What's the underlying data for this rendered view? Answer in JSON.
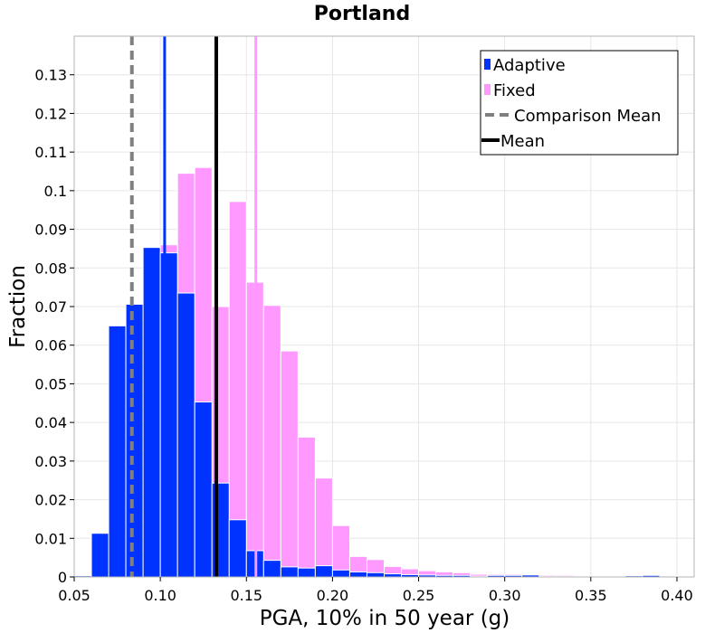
{
  "chart_data": {
    "type": "bar",
    "title": "Portland",
    "xlabel": "PGA, 10% in 50 year (g)",
    "ylabel": "Fraction",
    "xlim": [
      0.05,
      0.41
    ],
    "ylim": [
      0,
      0.14
    ],
    "x_ticks": [
      "0.05",
      "0.10",
      "0.15",
      "0.20",
      "0.25",
      "0.30",
      "0.35",
      "0.40"
    ],
    "x_tick_values": [
      0.05,
      0.1,
      0.15,
      0.2,
      0.25,
      0.3,
      0.35,
      0.4
    ],
    "y_ticks": [
      "0",
      "0.01",
      "0.02",
      "0.03",
      "0.04",
      "0.05",
      "0.06",
      "0.07",
      "0.08",
      "0.09",
      "0.1",
      "0.11",
      "0.12",
      "0.13"
    ],
    "y_tick_values": [
      0,
      0.01,
      0.02,
      0.03,
      0.04,
      0.05,
      0.06,
      0.07,
      0.08,
      0.09,
      0.1,
      0.11,
      0.12,
      0.13
    ],
    "grid": true,
    "legend_position": "top-right",
    "bin_width": 0.01,
    "bin_starts": [
      0.05,
      0.06,
      0.07,
      0.08,
      0.09,
      0.1,
      0.11,
      0.12,
      0.13,
      0.14,
      0.15,
      0.16,
      0.17,
      0.18,
      0.19,
      0.2,
      0.21,
      0.22,
      0.23,
      0.24,
      0.25,
      0.26,
      0.27,
      0.28,
      0.29,
      0.3,
      0.31,
      0.32,
      0.33,
      0.34,
      0.35,
      0.36,
      0.37,
      0.38,
      0.39
    ],
    "series": [
      {
        "name": "Fixed",
        "color": "#ff99ff",
        "values": [
          0,
          0,
          0,
          0,
          0,
          0.086,
          0.1045,
          0.106,
          0.07,
          0.0972,
          0.0763,
          0.0703,
          0.0585,
          0.0362,
          0.0256,
          0.0133,
          0.0053,
          0.0045,
          0.0027,
          0.0021,
          0.0016,
          0.0013,
          0.0011,
          0.0007,
          0.0007,
          0.0007,
          0.0006,
          0.0005,
          0.0004,
          0,
          0,
          0,
          0,
          0,
          0.0003
        ]
      },
      {
        "name": "Adaptive",
        "color": "#0033ff",
        "values": [
          0.0003,
          0.0113,
          0.065,
          0.0706,
          0.0853,
          0.0839,
          0.0735,
          0.0453,
          0.0243,
          0.0148,
          0.0068,
          0.0043,
          0.0026,
          0.0023,
          0.0029,
          0.0018,
          0.0013,
          0.0011,
          0.0008,
          0.0006,
          0.0005,
          0.0004,
          0.0004,
          0.0002,
          0.0004,
          0.0004,
          0.0005,
          0.0002,
          0.0001,
          0.0001,
          0,
          0.0001,
          0.0003,
          0.0004,
          0.0001
        ]
      }
    ],
    "vertical_lines": [
      {
        "name": "Comparison Mean",
        "x": 0.0835,
        "color": "#808080",
        "style": "dashed"
      },
      {
        "name": "Adaptive",
        "x": 0.1025,
        "color": "#0033ff",
        "style": "solid"
      },
      {
        "name": "Mean",
        "x": 0.1325,
        "color": "#000000",
        "style": "solid"
      },
      {
        "name": "Fixed",
        "x": 0.1555,
        "color": "#ff99ff",
        "style": "solid"
      }
    ],
    "legend": [
      {
        "label": "Adaptive",
        "symbol": "bar",
        "color": "#0033ff"
      },
      {
        "label": "Fixed",
        "symbol": "bar",
        "color": "#ff99ff"
      },
      {
        "label": "Comparison Mean",
        "symbol": "dashed-line",
        "color": "#808080"
      },
      {
        "label": "Mean",
        "symbol": "line",
        "color": "#000000"
      }
    ]
  }
}
